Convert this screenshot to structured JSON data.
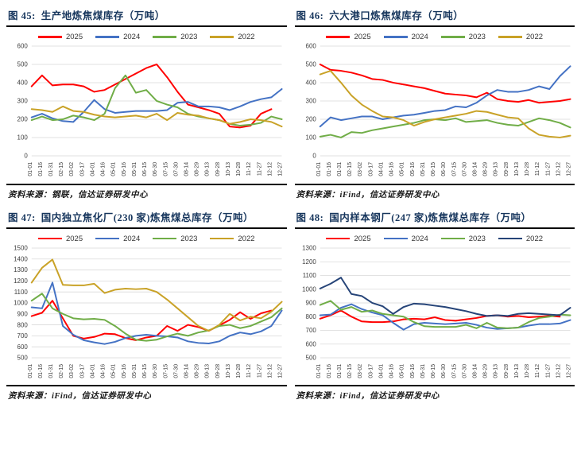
{
  "styles": {
    "title_color": "#17365D",
    "grid_color": "#D9D9D9",
    "tick_color": "#404040",
    "border_color": "#000000",
    "red": "#FF0000",
    "blue": "#4472C4",
    "green": "#70AD47",
    "gold": "#C9A227",
    "navy": "#264478"
  },
  "chart_data": [
    {
      "type": "line",
      "figure_label": "图 45:",
      "title": "生产地炼焦煤库存（万吨）",
      "source": "资料来源：钢联，信达证券研发中心",
      "ylim": [
        0,
        600
      ],
      "y_step": 100,
      "grid": true,
      "legend_position": "top",
      "x": [
        "01-01",
        "01-16",
        "01-31",
        "02-15",
        "03-02",
        "03-17",
        "04-01",
        "04-16",
        "05-01",
        "05-16",
        "05-31",
        "06-15",
        "06-30",
        "07-15",
        "07-30",
        "08-14",
        "08-29",
        "09-13",
        "09-28",
        "10-13",
        "10-28",
        "11-12",
        "11-27",
        "12-12",
        "12-27"
      ],
      "series": [
        {
          "name": "2025",
          "color": "#FF0000",
          "values": [
            380,
            440,
            385,
            390,
            390,
            380,
            350,
            360,
            390,
            420,
            450,
            480,
            500,
            430,
            350,
            280,
            265,
            250,
            230,
            160,
            155,
            165,
            230,
            255,
            null
          ]
        },
        {
          "name": "2024",
          "color": "#4472C4",
          "values": [
            210,
            230,
            205,
            190,
            185,
            240,
            305,
            255,
            235,
            240,
            245,
            245,
            245,
            250,
            290,
            295,
            270,
            270,
            265,
            250,
            270,
            295,
            310,
            320,
            365
          ]
        },
        {
          "name": "2023",
          "color": "#70AD47",
          "values": [
            195,
            215,
            195,
            200,
            220,
            210,
            195,
            230,
            370,
            440,
            345,
            360,
            300,
            280,
            265,
            230,
            215,
            205,
            195,
            175,
            165,
            170,
            180,
            215,
            200
          ]
        },
        {
          "name": "2022",
          "color": "#C9A227",
          "values": [
            255,
            250,
            240,
            270,
            245,
            240,
            225,
            215,
            210,
            215,
            220,
            210,
            230,
            195,
            235,
            225,
            220,
            205,
            195,
            175,
            185,
            200,
            195,
            185,
            160
          ]
        }
      ]
    },
    {
      "type": "line",
      "figure_label": "图 46:",
      "title": "六大港口炼焦煤库存（万吨）",
      "source": "资料来源：iFind，信达证券研发中心",
      "ylim": [
        0,
        600
      ],
      "y_step": 100,
      "grid": true,
      "legend_position": "top",
      "x": [
        "01-01",
        "01-16",
        "01-31",
        "02-15",
        "03-02",
        "03-17",
        "04-01",
        "04-16",
        "05-01",
        "05-16",
        "05-31",
        "06-15",
        "06-30",
        "07-15",
        "07-30",
        "08-14",
        "08-29",
        "09-13",
        "09-28",
        "10-13",
        "10-28",
        "11-12",
        "11-27",
        "12-12",
        "12-27"
      ],
      "series": [
        {
          "name": "2025",
          "color": "#FF0000",
          "values": [
            500,
            470,
            465,
            455,
            440,
            420,
            415,
            400,
            390,
            380,
            370,
            355,
            340,
            335,
            330,
            320,
            345,
            310,
            300,
            295,
            305,
            290,
            295,
            300,
            310
          ]
        },
        {
          "name": "2024",
          "color": "#4472C4",
          "values": [
            160,
            210,
            195,
            205,
            215,
            215,
            200,
            210,
            220,
            225,
            235,
            245,
            250,
            270,
            265,
            290,
            330,
            360,
            350,
            350,
            360,
            380,
            365,
            435,
            490
          ]
        },
        {
          "name": "2023",
          "color": "#70AD47",
          "values": [
            105,
            115,
            100,
            130,
            125,
            140,
            150,
            160,
            170,
            180,
            195,
            200,
            195,
            205,
            185,
            190,
            195,
            180,
            170,
            165,
            185,
            205,
            195,
            180,
            155
          ]
        },
        {
          "name": "2022",
          "color": "#C9A227",
          "values": [
            445,
            465,
            400,
            330,
            280,
            245,
            215,
            210,
            195,
            165,
            185,
            200,
            210,
            220,
            230,
            245,
            240,
            225,
            210,
            205,
            150,
            115,
            105,
            100,
            110
          ]
        }
      ]
    },
    {
      "type": "line",
      "figure_label": "图 47:",
      "title": "国内独立焦化厂(230 家)炼焦煤总库存（万吨）",
      "source": "资料来源：iFind，信达证券研发中心",
      "ylim": [
        500,
        1500
      ],
      "y_step": 100,
      "grid": true,
      "legend_position": "top",
      "x": [
        "01-01",
        "01-16",
        "01-31",
        "02-15",
        "03-02",
        "03-17",
        "04-01",
        "04-16",
        "05-01",
        "05-16",
        "05-31",
        "06-15",
        "06-30",
        "07-15",
        "07-30",
        "08-14",
        "08-29",
        "09-13",
        "09-28",
        "10-13",
        "10-28",
        "11-12",
        "11-27",
        "12-12",
        "12-27"
      ],
      "series": [
        {
          "name": "2025",
          "color": "#FF0000",
          "values": [
            880,
            910,
            1020,
            860,
            700,
            675,
            690,
            720,
            715,
            680,
            660,
            685,
            700,
            790,
            745,
            800,
            780,
            745,
            795,
            845,
            915,
            855,
            905,
            930,
            null
          ]
        },
        {
          "name": "2024",
          "color": "#4472C4",
          "values": [
            960,
            950,
            1185,
            790,
            710,
            660,
            640,
            625,
            645,
            680,
            700,
            710,
            700,
            695,
            685,
            650,
            635,
            630,
            650,
            700,
            730,
            715,
            740,
            790,
            930
          ]
        },
        {
          "name": "2023",
          "color": "#70AD47",
          "values": [
            1020,
            1085,
            950,
            900,
            860,
            850,
            855,
            845,
            790,
            720,
            665,
            655,
            665,
            695,
            720,
            700,
            730,
            750,
            790,
            800,
            770,
            790,
            830,
            870,
            950
          ]
        },
        {
          "name": "2022",
          "color": "#C9A227",
          "values": [
            1185,
            1320,
            1395,
            1165,
            1160,
            1160,
            1175,
            1090,
            1120,
            1130,
            1125,
            1130,
            1100,
            1030,
            950,
            870,
            790,
            745,
            800,
            900,
            840,
            875,
            860,
            920,
            1010
          ]
        }
      ]
    },
    {
      "type": "line",
      "figure_label": "图 48:",
      "title": "国内样本钢厂(247 家)炼焦煤总库存（万吨）",
      "source": "资料来源：iFind，信达证券研发中心",
      "ylim": [
        500,
        1300
      ],
      "y_step": 100,
      "grid": true,
      "legend_position": "top",
      "x": [
        "01-01",
        "01-16",
        "01-31",
        "02-15",
        "03-02",
        "03-17",
        "04-01",
        "04-16",
        "05-01",
        "05-16",
        "05-31",
        "06-15",
        "06-30",
        "07-15",
        "07-30",
        "08-14",
        "08-29",
        "09-13",
        "09-28",
        "10-13",
        "10-28",
        "11-12",
        "11-27",
        "12-12",
        "12-27"
      ],
      "series": [
        {
          "name": "2025",
          "color": "#FF0000",
          "values": [
            785,
            810,
            845,
            800,
            765,
            760,
            760,
            765,
            780,
            785,
            780,
            795,
            775,
            770,
            780,
            790,
            805,
            810,
            800,
            805,
            795,
            800,
            805,
            800,
            null
          ]
        },
        {
          "name": "2024",
          "color": "#4472C4",
          "values": [
            810,
            815,
            865,
            890,
            855,
            830,
            810,
            755,
            705,
            745,
            755,
            750,
            745,
            750,
            755,
            740,
            720,
            710,
            715,
            720,
            735,
            745,
            745,
            750,
            775
          ]
        },
        {
          "name": "2023",
          "color": "#70AD47",
          "values": [
            885,
            915,
            850,
            870,
            835,
            845,
            820,
            810,
            800,
            760,
            730,
            725,
            725,
            725,
            740,
            715,
            755,
            720,
            715,
            720,
            760,
            790,
            800,
            815,
            810
          ]
        },
        {
          "name": "2022",
          "color": "#264478",
          "values": [
            1005,
            1040,
            1085,
            965,
            950,
            900,
            875,
            820,
            870,
            895,
            890,
            880,
            870,
            855,
            840,
            820,
            805,
            810,
            805,
            820,
            825,
            820,
            815,
            810,
            865
          ]
        }
      ]
    }
  ]
}
